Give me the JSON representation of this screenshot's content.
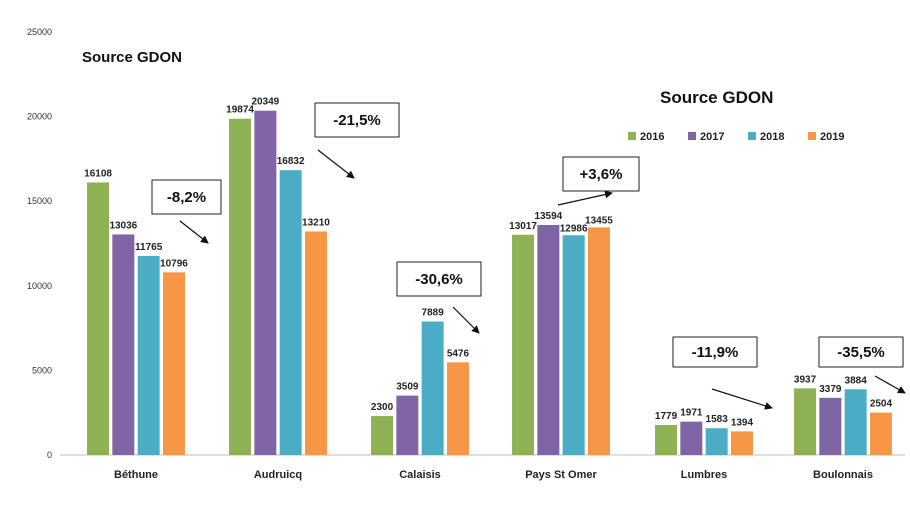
{
  "chart_data": {
    "type": "bar",
    "title": "",
    "xlabel": "",
    "ylabel": "",
    "ylim": [
      0,
      25000
    ],
    "yticks": [
      "0",
      "5000",
      "10000",
      "15000",
      "20000",
      "25000"
    ],
    "grid": false,
    "legend_position": "top-right",
    "categories": [
      "Béthune",
      "Audruicq",
      "Calaisis",
      "Pays St Omer",
      "Lumbres",
      "Boulonnais"
    ],
    "series": [
      {
        "name": "2016",
        "color": "#8db153",
        "values": [
          16108,
          19874,
          2300,
          13017,
          1779,
          3937
        ]
      },
      {
        "name": "2017",
        "color": "#8065a6",
        "values": [
          13036,
          20349,
          3509,
          13594,
          1971,
          3379
        ]
      },
      {
        "name": "2018",
        "color": "#4bacc6",
        "values": [
          11765,
          16832,
          7889,
          12986,
          1583,
          3884
        ]
      },
      {
        "name": "2019",
        "color": "#f79646",
        "values": [
          10796,
          13210,
          5476,
          13455,
          1394,
          2504
        ]
      }
    ],
    "annotations": {
      "source_labels": [
        "Source GDON",
        "Source GDON"
      ],
      "changes": [
        "-8,2%",
        "-21,5%",
        "-30,6%",
        "+3,6%",
        "-11,9%",
        "-35,5%"
      ]
    }
  }
}
